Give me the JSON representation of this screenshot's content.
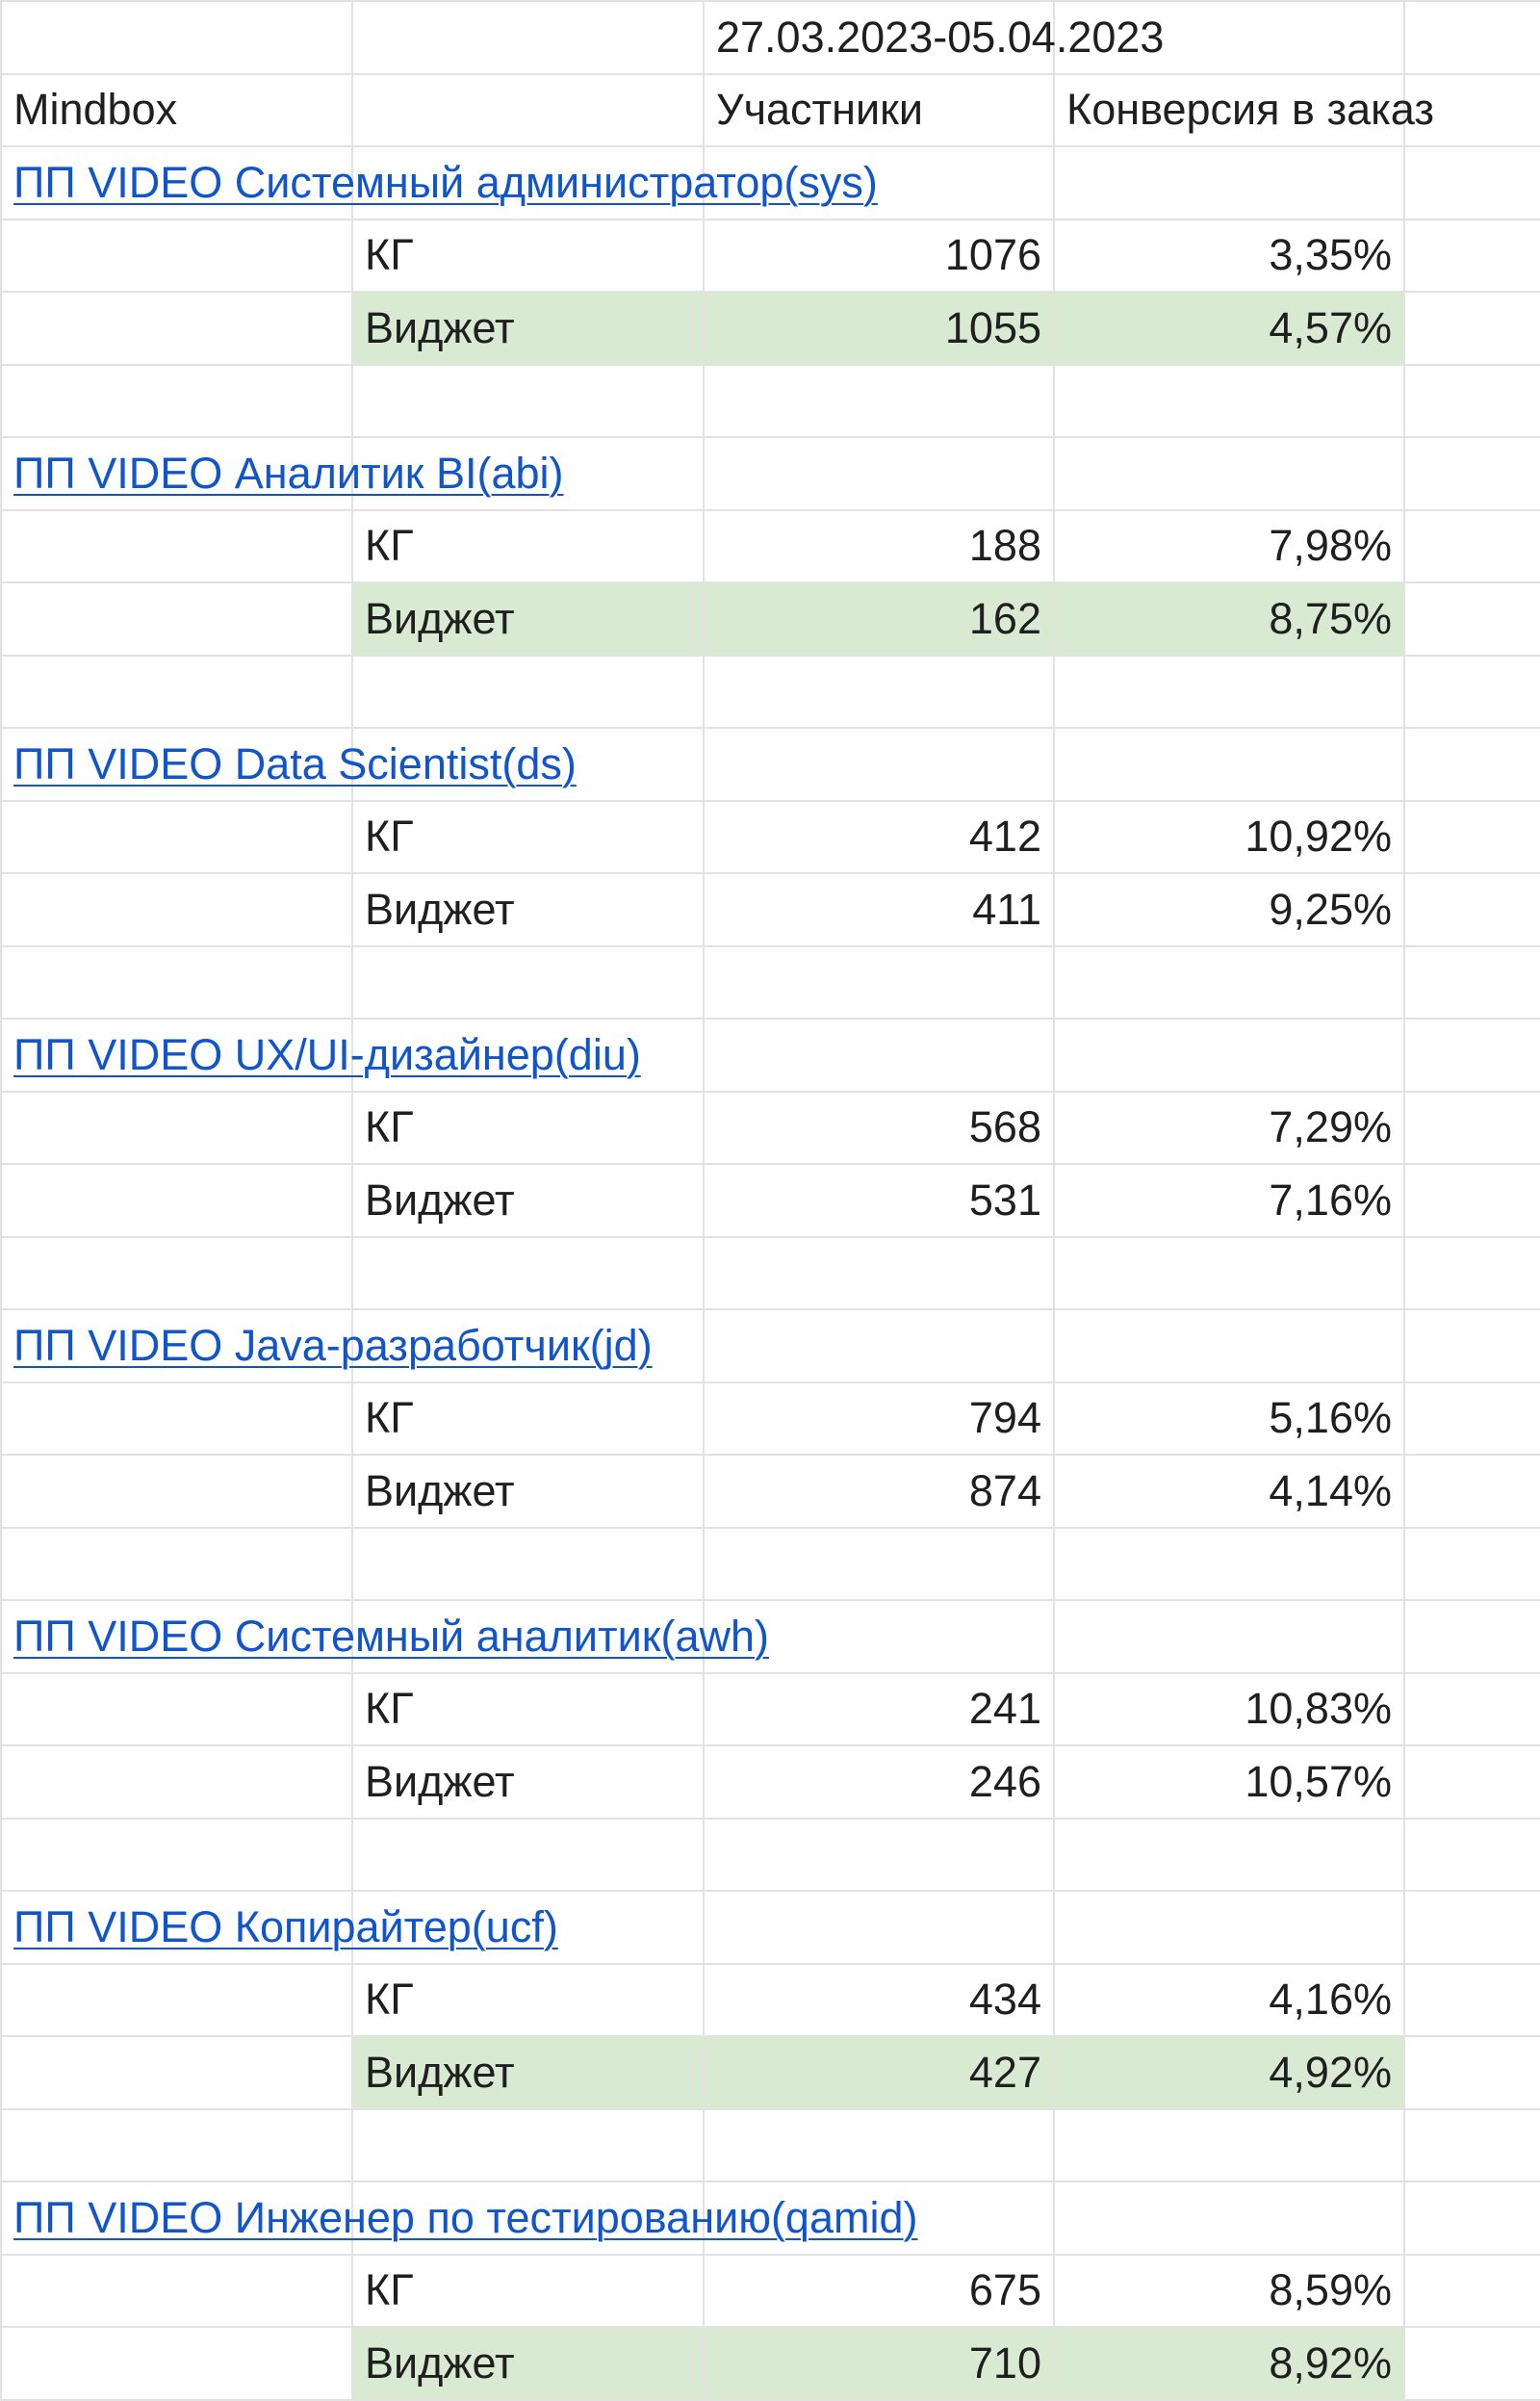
{
  "sheet": {
    "date_range": "27.03.2023-05.04.2023",
    "header": {
      "source": "Mindbox",
      "participants": "Участники",
      "conversion": "Конверсия в заказ"
    },
    "colors": {
      "highlight": "#d9ead3",
      "link": "#1155cc",
      "grid": "#e2e2e2"
    },
    "groups": [
      {
        "title": "ПП VIDEO Системный администратор(sys) ",
        "rows": [
          {
            "label": "КГ",
            "participants": "1076",
            "conversion": "3,35%",
            "highlight": false
          },
          {
            "label": "Виджет",
            "participants": "1055",
            "conversion": "4,57%",
            "highlight": true
          }
        ]
      },
      {
        "title": "ПП VIDEO Аналитик BI(abi)",
        "rows": [
          {
            "label": "КГ",
            "participants": "188",
            "conversion": "7,98%",
            "highlight": false
          },
          {
            "label": "Виджет",
            "participants": "162",
            "conversion": "8,75%",
            "highlight": true
          }
        ]
      },
      {
        "title": "ПП VIDEO Data Scientist(ds)",
        "rows": [
          {
            "label": "КГ",
            "participants": "412",
            "conversion": "10,92%",
            "highlight": false
          },
          {
            "label": "Виджет",
            "participants": "411",
            "conversion": "9,25%",
            "highlight": false
          }
        ]
      },
      {
        "title": "ПП VIDEO UX/UI-дизайнер(diu)",
        "rows": [
          {
            "label": "КГ",
            "participants": "568",
            "conversion": "7,29%",
            "highlight": false
          },
          {
            "label": "Виджет",
            "participants": "531",
            "conversion": "7,16%",
            "highlight": false
          }
        ]
      },
      {
        "title": "ПП VIDEO Java-разработчик(jd)",
        "rows": [
          {
            "label": "КГ",
            "participants": "794",
            "conversion": "5,16%",
            "highlight": false
          },
          {
            "label": "Виджет",
            "participants": "874",
            "conversion": "4,14%",
            "highlight": false
          }
        ]
      },
      {
        "title": "ПП VIDEO Системный аналитик(awh)",
        "rows": [
          {
            "label": "КГ",
            "participants": "241",
            "conversion": "10,83%",
            "highlight": false
          },
          {
            "label": "Виджет",
            "participants": "246",
            "conversion": "10,57%",
            "highlight": false
          }
        ]
      },
      {
        "title": "ПП VIDEO Копирайтер(ucf)",
        "rows": [
          {
            "label": "КГ",
            "participants": "434",
            "conversion": "4,16%",
            "highlight": false
          },
          {
            "label": "Виджет",
            "participants": "427",
            "conversion": "4,92%",
            "highlight": true
          }
        ]
      },
      {
        "title": "ПП VIDEO Инженер по тестированию(qamid)",
        "rows": [
          {
            "label": "КГ",
            "participants": "675",
            "conversion": "8,59%",
            "highlight": false
          },
          {
            "label": "Виджет",
            "participants": "710",
            "conversion": "8,92%",
            "highlight": true
          }
        ]
      }
    ]
  }
}
